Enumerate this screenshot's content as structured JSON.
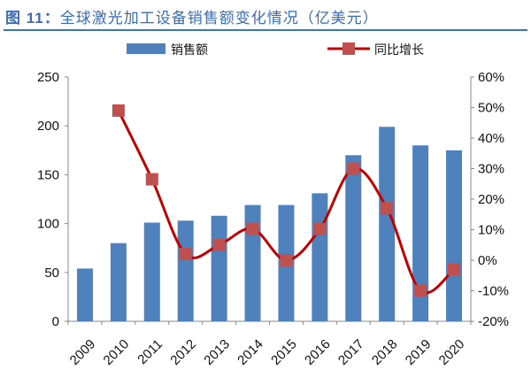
{
  "title_prefix": "图 11：",
  "title": "全球激光加工设备销售额变化情况（亿美元）",
  "chart_data": {
    "type": "bar",
    "title": "全球激光加工设备销售额变化情况（亿美元）",
    "categories": [
      "2009",
      "2010",
      "2011",
      "2012",
      "2013",
      "2014",
      "2015",
      "2016",
      "2017",
      "2018",
      "2019",
      "2020"
    ],
    "series": [
      {
        "name": "销售额",
        "type": "bar",
        "axis": "left",
        "color": "#4f81bd",
        "values": [
          54,
          80,
          101,
          103,
          108,
          119,
          119,
          131,
          170,
          199,
          180,
          175
        ]
      },
      {
        "name": "同比增长",
        "type": "line",
        "axis": "right",
        "color": "#c00000",
        "marker_color": "#c0504d",
        "values": [
          null,
          49,
          26.5,
          2,
          5,
          10.3,
          0,
          10.2,
          30,
          17,
          -10,
          -3
        ]
      }
    ],
    "left_axis": {
      "ylim": [
        0,
        250
      ],
      "ticks": [
        0,
        50,
        100,
        150,
        200,
        250
      ]
    },
    "right_axis": {
      "ylim": [
        -20,
        60
      ],
      "ticks": [
        -20,
        -10,
        0,
        10,
        20,
        30,
        40,
        50,
        60
      ],
      "tick_labels": [
        "-20%",
        "-10%",
        "0%",
        "10%",
        "20%",
        "30%",
        "40%",
        "50%",
        "60%"
      ]
    },
    "legend": "top",
    "grid": false
  }
}
